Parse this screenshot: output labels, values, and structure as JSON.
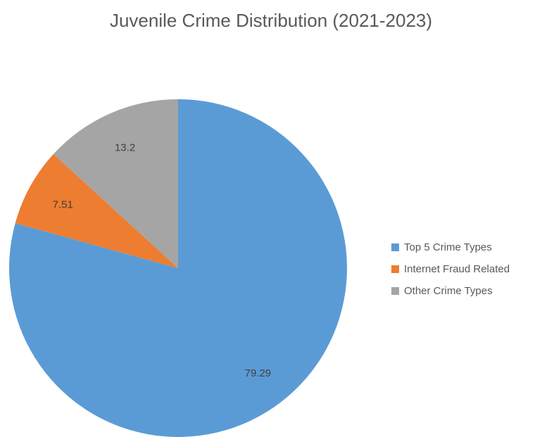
{
  "chart_data": {
    "type": "pie",
    "title": "Juvenile Crime Distribution (2021-2023)",
    "categories": [
      "Top 5 Crime Types",
      "Internet Fraud Related",
      "Other Crime Types"
    ],
    "values": [
      79.29,
      7.51,
      13.2
    ],
    "data_labels": [
      "79.29",
      "7.51",
      "13.2"
    ],
    "colors": [
      "#5B9BD5",
      "#ED7D31",
      "#A5A5A5"
    ],
    "start_angle": "12 o'clock",
    "direction": "clockwise",
    "legend": "right"
  }
}
